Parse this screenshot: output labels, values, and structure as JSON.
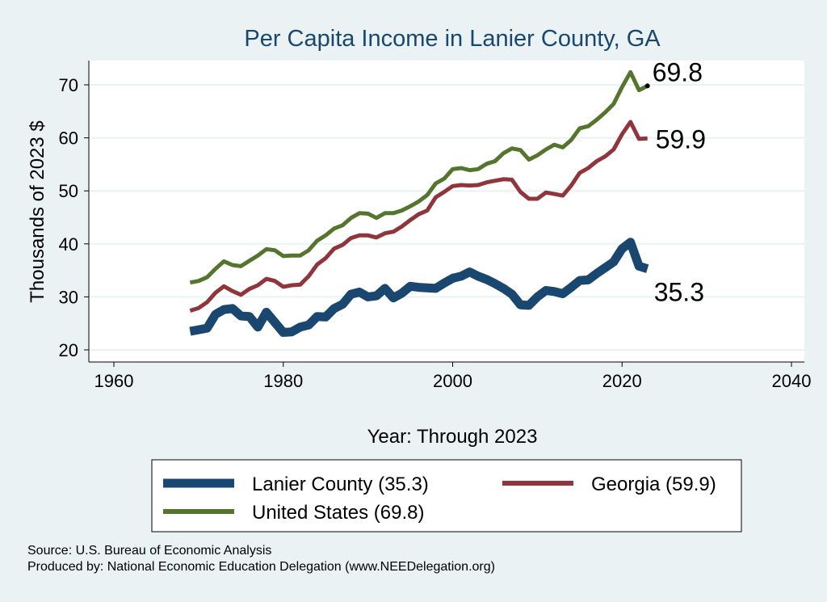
{
  "chart_data": {
    "type": "line",
    "title": "Per Capita Income in Lanier County, GA",
    "xlabel": "Year: Through 2023",
    "ylabel": "Thousands of 2023 $",
    "xlim": [
      1960,
      2040
    ],
    "ylim": [
      20,
      70
    ],
    "xticks": [
      "1960",
      "1980",
      "2000",
      "2020",
      "2040"
    ],
    "yticks": [
      "20",
      "30",
      "40",
      "50",
      "60",
      "70"
    ],
    "grid": true,
    "legend_placement": "bottom",
    "x_start": 1969,
    "series": [
      {
        "name": "Lanier County",
        "legend": "Lanier County (35.3)",
        "color": "#1a476f",
        "end_label": "35.3",
        "values": [
          23.5,
          23.8,
          24.1,
          26.7,
          27.6,
          27.8,
          26.4,
          26.3,
          24.3,
          27.1,
          25.2,
          23.3,
          23.4,
          24.3,
          24.7,
          26.3,
          26.2,
          27.8,
          28.6,
          30.5,
          30.9,
          30.0,
          30.2,
          31.6,
          29.8,
          30.7,
          32.0,
          31.8,
          31.7,
          31.6,
          32.6,
          33.5,
          33.9,
          34.7,
          33.9,
          33.3,
          32.5,
          31.6,
          30.5,
          28.5,
          28.4,
          30.0,
          31.2,
          31.0,
          30.6,
          31.8,
          33.1,
          33.2,
          34.4,
          35.5,
          36.6,
          39.1,
          40.3,
          35.8,
          35.3
        ]
      },
      {
        "name": "Georgia",
        "legend": "Georgia (59.9)",
        "color": "#90353b",
        "end_label": "59.9",
        "values": [
          27.4,
          27.9,
          29.0,
          30.8,
          32.0,
          31.1,
          30.4,
          31.5,
          32.2,
          33.4,
          33.0,
          31.9,
          32.2,
          32.3,
          33.9,
          36.1,
          37.3,
          39.1,
          39.8,
          41.1,
          41.6,
          41.6,
          41.2,
          42.0,
          42.3,
          43.3,
          44.5,
          45.6,
          46.3,
          48.8,
          49.8,
          50.9,
          51.1,
          51.0,
          51.1,
          51.6,
          51.9,
          52.2,
          52.1,
          49.8,
          48.5,
          48.5,
          49.7,
          49.4,
          49.1,
          51.0,
          53.4,
          54.3,
          55.6,
          56.5,
          57.8,
          60.7,
          63.0,
          59.8,
          59.9
        ]
      },
      {
        "name": "United States",
        "legend": "United States (69.8)",
        "color": "#55752f",
        "end_label": "69.8",
        "values": [
          32.7,
          33.0,
          33.7,
          35.3,
          36.7,
          36.0,
          35.8,
          36.8,
          37.8,
          39.0,
          38.8,
          37.7,
          37.8,
          37.8,
          38.8,
          40.6,
          41.6,
          42.9,
          43.5,
          44.9,
          45.8,
          45.7,
          44.9,
          45.8,
          45.8,
          46.3,
          47.1,
          48.0,
          49.2,
          51.4,
          52.3,
          54.1,
          54.3,
          53.9,
          54.1,
          55.1,
          55.6,
          57.1,
          58.0,
          57.7,
          55.9,
          56.7,
          57.8,
          58.7,
          58.2,
          59.6,
          61.8,
          62.2,
          63.4,
          64.8,
          66.4,
          69.6,
          72.4,
          69.0,
          69.8
        ]
      }
    ]
  },
  "source": "Source: U.S. Bureau of Economic Analysis",
  "produced_by": "Produced by: National Economic Education Delegation (www.NEEDelegation.org)"
}
